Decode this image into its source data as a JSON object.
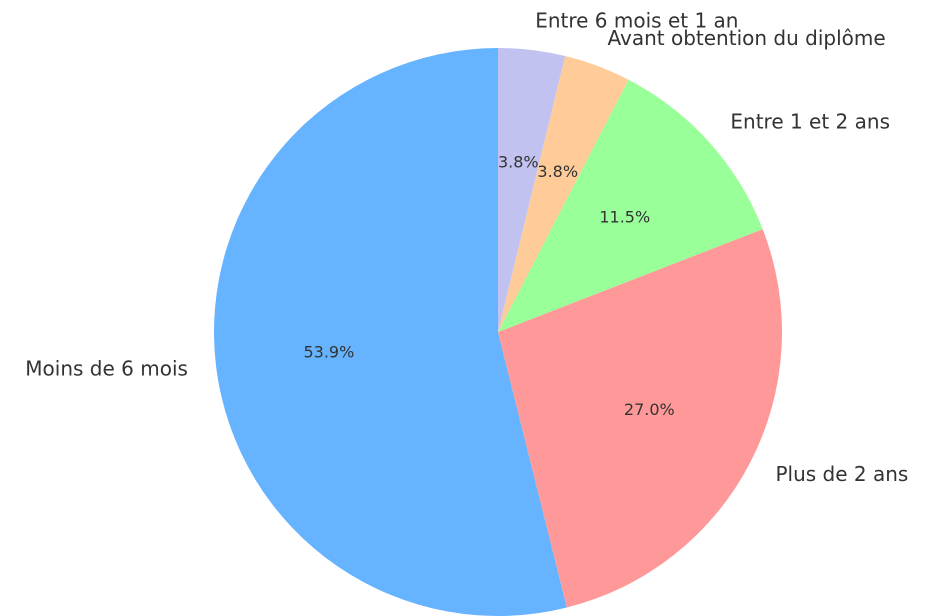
{
  "chart_data": {
    "type": "pie",
    "categories": [
      "Moins de 6 mois",
      "Plus de 2 ans",
      "Entre 1 et 2 ans",
      "Avant obtention du diplôme",
      "Entre 6 mois et 1 an"
    ],
    "values": [
      53.9,
      27.0,
      11.5,
      3.8,
      3.8
    ],
    "value_labels": [
      "53.9%",
      "27.0%",
      "11.5%",
      "3.8%",
      "3.8%"
    ],
    "colors": [
      "#66b3ff",
      "#ff9999",
      "#99ff99",
      "#ffcc99",
      "#c2c2f0"
    ],
    "start_angle": 90
  }
}
